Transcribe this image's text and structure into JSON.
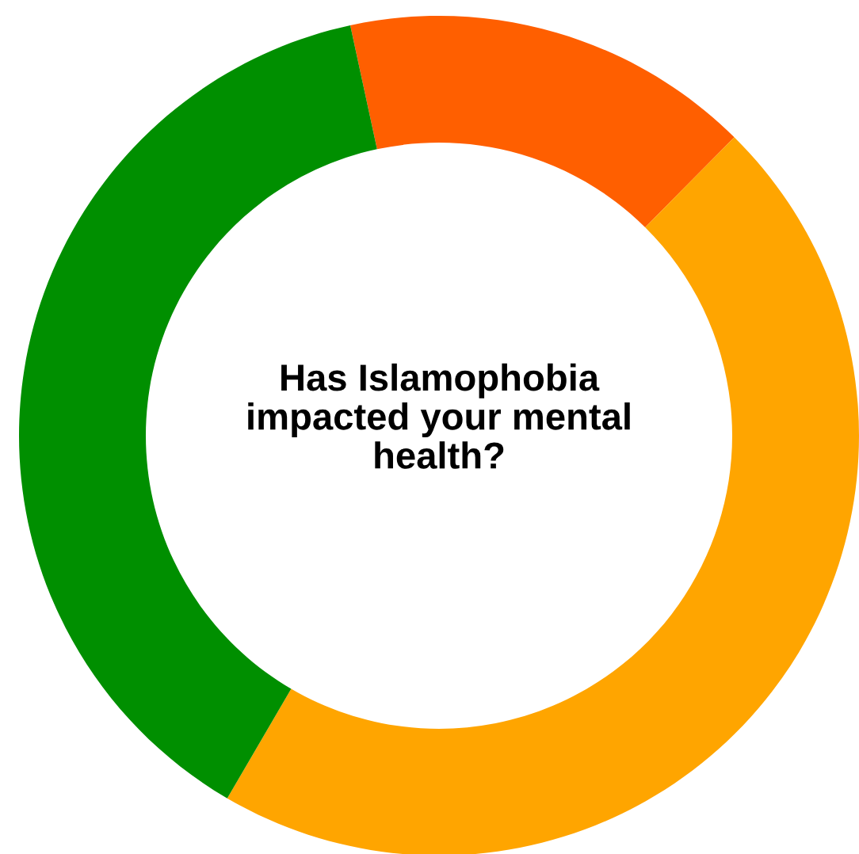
{
  "chart_data": {
    "type": "donut",
    "title": "Has Islamophobia\nimpacted your mental\nhealth?",
    "categories": [
      null,
      null,
      null
    ],
    "values": [
      15.8,
      46.0,
      38.2
    ],
    "colors": [
      "#ff5f00",
      "#ffa500",
      "#008f00"
    ]
  }
}
